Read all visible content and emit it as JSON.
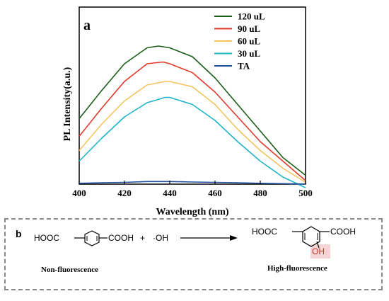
{
  "chart_data": {
    "type": "line",
    "panel_label": "a",
    "xlabel": "Wavelength (nm)",
    "ylabel": "PL Intensity(a.u.)",
    "xlim": [
      400,
      500
    ],
    "ylim": [
      0,
      100
    ],
    "xticks": [
      "400",
      "420",
      "440",
      "460",
      "480",
      "500"
    ],
    "legend_position": "top-right",
    "grid": false,
    "series": [
      {
        "name": "120 uL",
        "color": "#1a5e1a",
        "x": [
          400,
          410,
          420,
          430,
          435,
          440,
          450,
          460,
          470,
          480,
          490,
          500
        ],
        "y": [
          37,
          53,
          68,
          77,
          78,
          77,
          72,
          60,
          45,
          30,
          15,
          5
        ]
      },
      {
        "name": "90 uL",
        "color": "#e03a2c",
        "x": [
          400,
          410,
          420,
          430,
          437,
          440,
          450,
          460,
          470,
          480,
          490,
          500
        ],
        "y": [
          27,
          43,
          58,
          68,
          69,
          68,
          63,
          52,
          38,
          24,
          13,
          2
        ]
      },
      {
        "name": "60 uL",
        "color": "#f5c45e",
        "x": [
          400,
          410,
          420,
          430,
          438,
          440,
          450,
          460,
          470,
          480,
          490,
          500
        ],
        "y": [
          19,
          34,
          47,
          56,
          58,
          58,
          55,
          45,
          31,
          19,
          9,
          1
        ]
      },
      {
        "name": "30 uL",
        "color": "#1fb5c9",
        "x": [
          400,
          410,
          420,
          430,
          438,
          440,
          450,
          460,
          470,
          480,
          490,
          500
        ],
        "y": [
          13,
          26,
          38,
          46,
          49,
          49,
          45,
          36,
          24,
          13,
          4,
          -2
        ]
      },
      {
        "name": "TA",
        "color": "#1f4f9e",
        "x": [
          400,
          410,
          420,
          430,
          440,
          450,
          460,
          470,
          480,
          490,
          500
        ],
        "y": [
          0.5,
          0.8,
          1,
          1.5,
          1.5,
          1.2,
          1,
          0.8,
          0.5,
          0.3,
          0.1
        ]
      }
    ]
  },
  "reaction": {
    "panel_label": "b",
    "reactant_left": "HOOC",
    "reactant_right": "COOH",
    "plus": "+",
    "radical": "·OH",
    "product_left": "HOOC",
    "product_right": "COOH",
    "product_oh": "OH",
    "reactant_caption": "Non-fluorescence",
    "product_caption": "High-fluorescence",
    "oh_highlight_color": "#f4d4d4"
  }
}
